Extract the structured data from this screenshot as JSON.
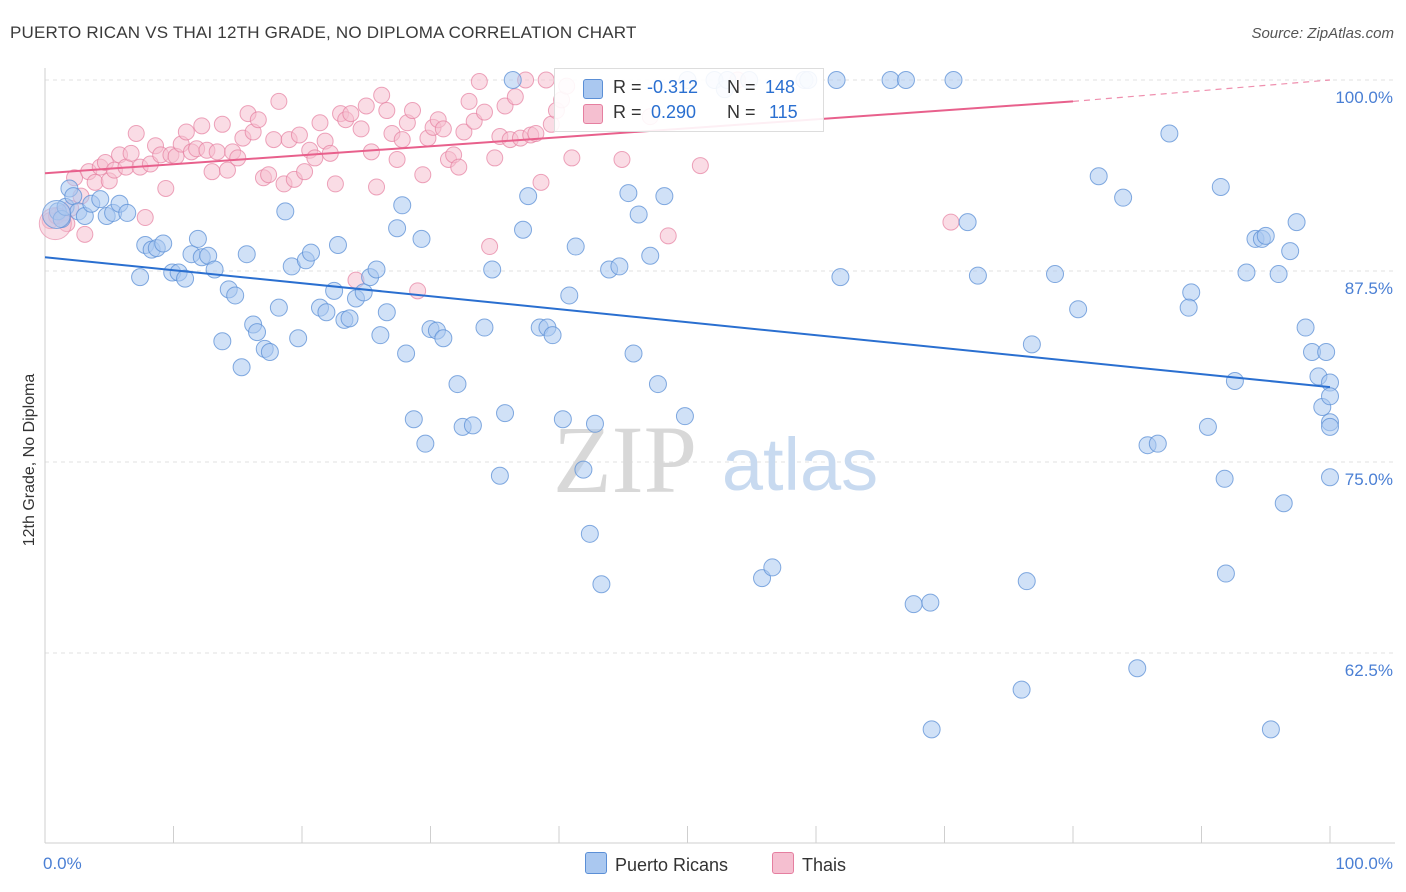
{
  "title": "PUERTO RICAN VS THAI 12TH GRADE, NO DIPLOMA CORRELATION CHART",
  "source": "Source: ZipAtlas.com",
  "watermark": {
    "zip": "ZIP",
    "atlas": "atlas"
  },
  "legend_top": {
    "rows": [
      {
        "r_label": "R =",
        "r_value": "-0.312",
        "n_label": "N =",
        "n_value": "148"
      },
      {
        "r_label": "R =",
        "r_value": "0.290",
        "n_label": "N =",
        "n_value": "115"
      }
    ]
  },
  "bottom_legend": [
    "Puerto Ricans",
    "Thais"
  ],
  "colors": {
    "blue_fill": "#aac8f0",
    "blue_stroke": "#5b8fd6",
    "blue_line": "#2a6fd0",
    "pink_fill": "#f5bfd0",
    "pink_stroke": "#e57fa0",
    "pink_line": "#e8608c",
    "tick_label": "#4a7fd4"
  },
  "chart_data": {
    "type": "scatter",
    "title": "PUERTO RICAN VS THAI 12TH GRADE, NO DIPLOMA CORRELATION CHART",
    "xlabel": "",
    "ylabel": "12th Grade, No Diploma",
    "x_tick_labels": [
      "0.0%",
      "100.0%"
    ],
    "y_tick_labels": [
      "100.0%",
      "87.5%",
      "75.0%",
      "62.5%"
    ],
    "y_ticks": [
      100,
      87.5,
      75,
      62.5
    ],
    "xlim": [
      0,
      100
    ],
    "ylim": [
      50.5,
      101.8
    ],
    "grid": "horizontal dashed",
    "series": [
      {
        "name": "Puerto Ricans",
        "R": -0.312,
        "N": 148,
        "trend": {
          "x0": 0,
          "y0": 88.4,
          "x1": 100,
          "y1": 79.9
        },
        "points": [
          [
            1,
            91.4
          ],
          [
            1.3,
            90.9
          ],
          [
            1.6,
            91.7
          ],
          [
            1.9,
            92.9
          ],
          [
            2.2,
            92.4
          ],
          [
            2.6,
            91.4
          ],
          [
            3.1,
            91.1
          ],
          [
            3.6,
            91.9
          ],
          [
            4.3,
            92.2
          ],
          [
            4.8,
            91.1
          ],
          [
            5.3,
            91.3
          ],
          [
            5.8,
            91.9
          ],
          [
            6.4,
            91.3
          ],
          [
            7.4,
            87.1
          ],
          [
            7.8,
            89.2
          ],
          [
            8.3,
            88.9
          ],
          [
            8.7,
            89.0
          ],
          [
            9.2,
            89.3
          ],
          [
            9.9,
            87.4
          ],
          [
            10.4,
            87.4
          ],
          [
            10.9,
            87.0
          ],
          [
            11.4,
            88.6
          ],
          [
            11.9,
            89.6
          ],
          [
            12.2,
            88.4
          ],
          [
            12.7,
            88.5
          ],
          [
            13.2,
            87.6
          ],
          [
            13.8,
            82.9
          ],
          [
            14.3,
            86.3
          ],
          [
            14.8,
            85.9
          ],
          [
            15.3,
            81.2
          ],
          [
            15.7,
            88.6
          ],
          [
            16.2,
            84.0
          ],
          [
            16.5,
            83.5
          ],
          [
            17.1,
            82.4
          ],
          [
            17.5,
            82.2
          ],
          [
            18.2,
            85.1
          ],
          [
            18.7,
            91.4
          ],
          [
            19.2,
            87.8
          ],
          [
            19.7,
            83.1
          ],
          [
            20.3,
            88.2
          ],
          [
            20.7,
            88.7
          ],
          [
            21.4,
            85.1
          ],
          [
            21.9,
            84.8
          ],
          [
            22.5,
            86.2
          ],
          [
            22.8,
            89.2
          ],
          [
            23.3,
            84.3
          ],
          [
            23.7,
            84.4
          ],
          [
            24.2,
            85.7
          ],
          [
            24.8,
            86.1
          ],
          [
            25.3,
            87.1
          ],
          [
            25.8,
            87.6
          ],
          [
            26.1,
            83.3
          ],
          [
            26.6,
            84.8
          ],
          [
            27.4,
            90.3
          ],
          [
            27.8,
            91.8
          ],
          [
            28.1,
            82.1
          ],
          [
            28.7,
            77.8
          ],
          [
            29.3,
            89.6
          ],
          [
            29.6,
            76.2
          ],
          [
            30.0,
            83.7
          ],
          [
            30.5,
            83.6
          ],
          [
            31.0,
            83.1
          ],
          [
            32.1,
            80.1
          ],
          [
            32.5,
            77.3
          ],
          [
            33.3,
            77.4
          ],
          [
            34.2,
            83.8
          ],
          [
            34.8,
            87.6
          ],
          [
            35.4,
            74.1
          ],
          [
            35.8,
            78.2
          ],
          [
            36.4,
            100
          ],
          [
            37.2,
            90.2
          ],
          [
            37.6,
            92.4
          ],
          [
            38.5,
            83.8
          ],
          [
            39.1,
            83.8
          ],
          [
            39.5,
            83.3
          ],
          [
            40.3,
            77.8
          ],
          [
            40.8,
            85.9
          ],
          [
            41.3,
            89.1
          ],
          [
            41.9,
            74.5
          ],
          [
            42.4,
            70.3
          ],
          [
            42.8,
            77.5
          ],
          [
            43.3,
            67.0
          ],
          [
            43.9,
            87.6
          ],
          [
            44.7,
            87.8
          ],
          [
            45.4,
            92.6
          ],
          [
            45.8,
            82.1
          ],
          [
            46.2,
            91.2
          ],
          [
            47.1,
            88.5
          ],
          [
            47.7,
            80.1
          ],
          [
            48.2,
            92.4
          ],
          [
            49.8,
            78.0
          ],
          [
            50.0,
            100
          ],
          [
            52.1,
            100
          ],
          [
            52.9,
            99.4
          ],
          [
            53.1,
            100
          ],
          [
            54.8,
            100
          ],
          [
            55.8,
            67.4
          ],
          [
            56.6,
            68.1
          ],
          [
            59.1,
            100
          ],
          [
            59.4,
            100
          ],
          [
            61.6,
            100
          ],
          [
            61.9,
            87.1
          ],
          [
            65.8,
            100
          ],
          [
            67.0,
            100
          ],
          [
            67.6,
            65.7
          ],
          [
            68.9,
            65.8
          ],
          [
            69.0,
            57.5
          ],
          [
            70.7,
            100
          ],
          [
            71.8,
            90.7
          ],
          [
            72.6,
            87.2
          ],
          [
            76.0,
            60.1
          ],
          [
            76.4,
            67.2
          ],
          [
            76.8,
            82.7
          ],
          [
            78.6,
            87.3
          ],
          [
            80.4,
            85.0
          ],
          [
            82.0,
            93.7
          ],
          [
            83.9,
            92.3
          ],
          [
            85.0,
            61.5
          ],
          [
            85.8,
            76.1
          ],
          [
            86.6,
            76.2
          ],
          [
            87.5,
            96.5
          ],
          [
            89.2,
            86.1
          ],
          [
            89.0,
            85.1
          ],
          [
            90.5,
            77.3
          ],
          [
            91.5,
            93.0
          ],
          [
            91.8,
            73.9
          ],
          [
            91.9,
            67.7
          ],
          [
            92.6,
            80.3
          ],
          [
            93.5,
            87.4
          ],
          [
            94.2,
            89.6
          ],
          [
            94.7,
            89.6
          ],
          [
            95.0,
            89.8
          ],
          [
            95.4,
            57.5
          ],
          [
            96.0,
            87.3
          ],
          [
            96.4,
            72.3
          ],
          [
            96.9,
            88.8
          ],
          [
            97.4,
            90.7
          ],
          [
            98.1,
            83.8
          ],
          [
            98.6,
            82.2
          ],
          [
            99.1,
            80.6
          ],
          [
            99.4,
            78.6
          ],
          [
            99.7,
            82.2
          ],
          [
            100,
            80.2
          ],
          [
            100,
            74.0
          ],
          [
            100,
            79.3
          ],
          [
            100,
            77.6
          ],
          [
            100,
            77.3
          ]
        ]
      },
      {
        "name": "Thais",
        "R": 0.29,
        "N": 115,
        "trend": {
          "x0": 0,
          "y0": 93.9,
          "x1": 80,
          "y1": 98.6,
          "dashed_to": {
            "x": 100,
            "y": 100
          }
        },
        "points": [
          [
            0.4,
            90.8
          ],
          [
            0.9,
            91.1
          ],
          [
            1.4,
            91.3
          ],
          [
            1.7,
            90.6
          ],
          [
            2.0,
            91.6
          ],
          [
            2.3,
            93.6
          ],
          [
            2.8,
            92.4
          ],
          [
            3.1,
            89.9
          ],
          [
            3.4,
            94.0
          ],
          [
            3.9,
            93.3
          ],
          [
            4.3,
            94.3
          ],
          [
            4.7,
            94.6
          ],
          [
            5.0,
            93.4
          ],
          [
            5.4,
            94.1
          ],
          [
            5.8,
            95.1
          ],
          [
            6.3,
            94.3
          ],
          [
            6.7,
            95.2
          ],
          [
            7.1,
            96.5
          ],
          [
            7.4,
            94.3
          ],
          [
            7.8,
            91.0
          ],
          [
            8.2,
            94.5
          ],
          [
            8.6,
            95.7
          ],
          [
            9.0,
            95.1
          ],
          [
            9.4,
            92.9
          ],
          [
            9.8,
            95.1
          ],
          [
            10.2,
            95.0
          ],
          [
            10.6,
            95.8
          ],
          [
            11.0,
            96.6
          ],
          [
            11.4,
            95.3
          ],
          [
            11.8,
            95.5
          ],
          [
            12.2,
            97.0
          ],
          [
            12.6,
            95.4
          ],
          [
            13.0,
            94.0
          ],
          [
            13.4,
            95.3
          ],
          [
            13.8,
            97.1
          ],
          [
            14.2,
            94.1
          ],
          [
            14.6,
            95.3
          ],
          [
            15.0,
            94.9
          ],
          [
            15.4,
            96.2
          ],
          [
            15.8,
            97.8
          ],
          [
            16.2,
            96.6
          ],
          [
            16.6,
            97.4
          ],
          [
            17.0,
            93.6
          ],
          [
            17.4,
            93.8
          ],
          [
            17.8,
            96.1
          ],
          [
            18.2,
            98.6
          ],
          [
            18.6,
            93.2
          ],
          [
            19.0,
            96.1
          ],
          [
            19.4,
            93.5
          ],
          [
            19.8,
            96.4
          ],
          [
            20.2,
            94.0
          ],
          [
            20.6,
            95.4
          ],
          [
            21.0,
            94.9
          ],
          [
            21.4,
            97.2
          ],
          [
            21.8,
            96.0
          ],
          [
            22.2,
            95.2
          ],
          [
            22.6,
            93.2
          ],
          [
            23.0,
            97.8
          ],
          [
            23.4,
            97.4
          ],
          [
            23.8,
            97.8
          ],
          [
            24.2,
            86.9
          ],
          [
            24.6,
            96.8
          ],
          [
            25.0,
            98.3
          ],
          [
            25.4,
            95.3
          ],
          [
            25.8,
            93.0
          ],
          [
            26.2,
            99.0
          ],
          [
            26.6,
            98.0
          ],
          [
            27.0,
            96.5
          ],
          [
            27.4,
            94.8
          ],
          [
            27.8,
            96.1
          ],
          [
            28.2,
            97.2
          ],
          [
            28.6,
            98.0
          ],
          [
            29.0,
            86.2
          ],
          [
            29.4,
            93.8
          ],
          [
            29.8,
            96.2
          ],
          [
            30.2,
            96.9
          ],
          [
            30.6,
            97.4
          ],
          [
            31.0,
            96.8
          ],
          [
            31.4,
            94.8
          ],
          [
            31.8,
            95.1
          ],
          [
            32.2,
            94.3
          ],
          [
            32.6,
            96.6
          ],
          [
            33.0,
            98.6
          ],
          [
            33.4,
            97.3
          ],
          [
            33.8,
            99.9
          ],
          [
            34.2,
            97.9
          ],
          [
            34.6,
            89.1
          ],
          [
            35.0,
            94.9
          ],
          [
            35.4,
            96.3
          ],
          [
            35.8,
            98.3
          ],
          [
            36.2,
            96.1
          ],
          [
            36.6,
            98.9
          ],
          [
            37.0,
            96.2
          ],
          [
            37.4,
            100
          ],
          [
            37.8,
            96.4
          ],
          [
            38.2,
            96.5
          ],
          [
            38.6,
            93.3
          ],
          [
            39.0,
            100
          ],
          [
            39.4,
            97.1
          ],
          [
            39.8,
            98.0
          ],
          [
            40.2,
            98.7
          ],
          [
            40.6,
            99.6
          ],
          [
            41.0,
            94.9
          ],
          [
            44.9,
            94.8
          ],
          [
            47.1,
            97.6
          ],
          [
            48.5,
            89.8
          ],
          [
            51.0,
            94.4
          ],
          [
            53.9,
            100
          ],
          [
            70.5,
            90.7
          ]
        ]
      }
    ]
  }
}
